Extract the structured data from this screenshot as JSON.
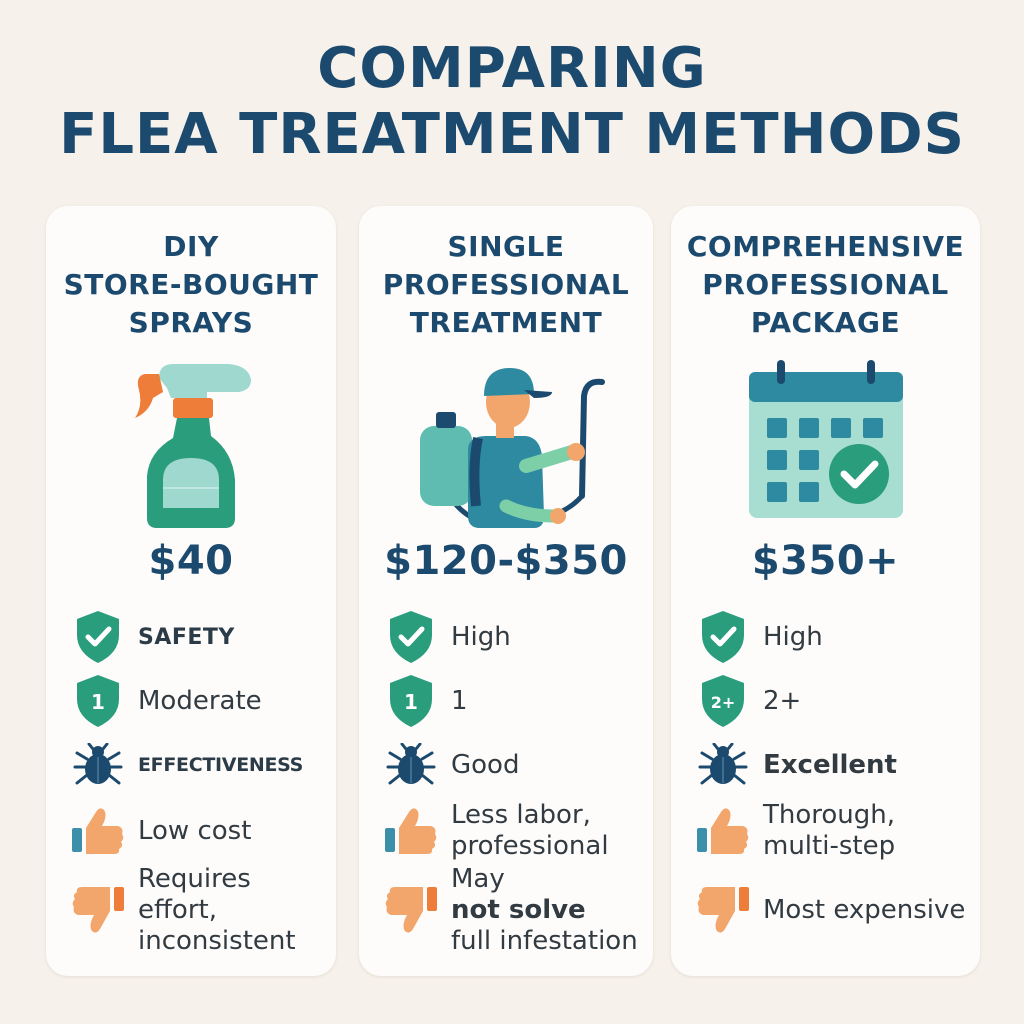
{
  "title": {
    "line1": "COMPARING",
    "line2": "FLEA TREATMENT METHODS"
  },
  "colors": {
    "background": "#f6f1ea",
    "card": "#fdfcfa",
    "navy": "#1c4a6e",
    "teal": "#2a9d7c",
    "orange": "#f2a66b"
  },
  "methods": [
    {
      "title_lines": [
        "DIY",
        "STORE-BOUGHT",
        "SPRAYS"
      ],
      "icon": "spray-bottle-icon",
      "price": "$40",
      "safety": "SAFETY",
      "treatments_badge": "1",
      "treatments": "Moderate",
      "effectiveness": "EFFECTIVENESS",
      "pro": "Low cost",
      "con_lines": [
        "Requires effort,",
        "inconsistent"
      ]
    },
    {
      "title_lines": [
        "SINGLE",
        "PROFESSIONAL",
        "TREATMENT"
      ],
      "icon": "exterminator-icon",
      "price": "$120-$350",
      "safety": "High",
      "treatments_badge": "1",
      "treatments": "1",
      "effectiveness": "Good",
      "pro_lines": [
        "Less labor,",
        "professional"
      ],
      "con_prefix": "May ",
      "con_bold": "not solve",
      "con_line2": "full infestation"
    },
    {
      "title_lines": [
        "COMPREHENSIVE",
        "PROFESSIONAL",
        "PACKAGE"
      ],
      "icon": "calendar-check-icon",
      "price": "$350+",
      "safety": "High",
      "treatments_badge": "2+",
      "treatments": "2+",
      "effectiveness": "Excellent",
      "pro_lines": [
        "Thorough,",
        "multi-step"
      ],
      "con": "Most expensive"
    }
  ]
}
